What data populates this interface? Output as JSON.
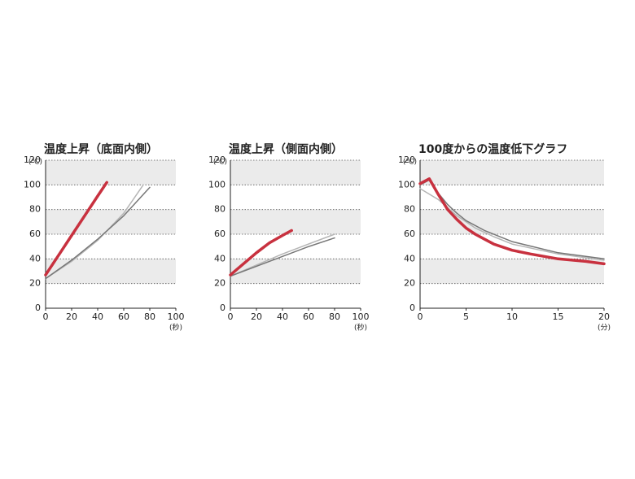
{
  "chart_data": [
    {
      "type": "line",
      "title": "温度上昇（底面内側）",
      "ylabel": "(℃)",
      "xlabel": "(秒)",
      "xlim": [
        0,
        100
      ],
      "xticks": [
        0,
        20,
        40,
        60,
        80,
        100
      ],
      "ylim": [
        0,
        120
      ],
      "yticks": [
        0,
        20,
        40,
        60,
        80,
        100,
        120
      ],
      "grid": true,
      "band_fill": "#ebebeb",
      "series": [
        {
          "color": "#b5b5b5",
          "x": [
            0,
            20,
            40,
            60,
            75
          ],
          "values": [
            24,
            38,
            55,
            77,
            100
          ]
        },
        {
          "color": "#777777",
          "x": [
            0,
            20,
            40,
            60,
            80
          ],
          "values": [
            24,
            39,
            56,
            75,
            98
          ]
        },
        {
          "color": "#c8313f",
          "x": [
            0,
            10,
            20,
            30,
            40,
            47
          ],
          "values": [
            27,
            43,
            59,
            75,
            91,
            102
          ]
        }
      ]
    },
    {
      "type": "line",
      "title": "温度上昇（側面内側）",
      "ylabel": "(℃)",
      "xlabel": "(秒)",
      "xlim": [
        0,
        100
      ],
      "xticks": [
        0,
        20,
        40,
        60,
        80,
        100
      ],
      "ylim": [
        0,
        120
      ],
      "yticks": [
        0,
        20,
        40,
        60,
        80,
        100,
        120
      ],
      "grid": true,
      "band_fill": "#ebebeb",
      "series": [
        {
          "color": "#b5b5b5",
          "x": [
            0,
            20,
            40,
            60,
            80
          ],
          "values": [
            26,
            35,
            44,
            52,
            60
          ]
        },
        {
          "color": "#777777",
          "x": [
            0,
            20,
            40,
            60,
            80
          ],
          "values": [
            26,
            34,
            42,
            50,
            57
          ]
        },
        {
          "color": "#c8313f",
          "x": [
            0,
            10,
            20,
            30,
            40,
            47
          ],
          "values": [
            27,
            36,
            45,
            53,
            59,
            63
          ]
        }
      ]
    },
    {
      "type": "line",
      "title": "100度からの温度低下グラフ",
      "ylabel": "(℃)",
      "xlabel": "(分)",
      "xlim": [
        0,
        20
      ],
      "xticks": [
        0,
        5,
        10,
        15,
        20
      ],
      "ylim": [
        0,
        120
      ],
      "yticks": [
        0,
        20,
        40,
        60,
        80,
        100,
        120
      ],
      "grid": true,
      "band_fill": "#ebebeb",
      "series": [
        {
          "color": "#b5b5b5",
          "x": [
            0,
            2,
            4,
            6,
            8,
            10,
            15,
            20
          ],
          "values": [
            97,
            88,
            75,
            65,
            58,
            52,
            44,
            39
          ]
        },
        {
          "color": "#777777",
          "x": [
            0,
            1,
            2,
            3,
            4,
            5,
            7,
            10,
            15,
            20
          ],
          "values": [
            100,
            104,
            93,
            84,
            77,
            71,
            63,
            54,
            45,
            40
          ]
        },
        {
          "color": "#c8313f",
          "x": [
            0,
            1,
            2,
            3,
            4,
            5,
            6,
            7,
            8,
            10,
            12,
            15,
            18,
            20
          ],
          "values": [
            101,
            105,
            92,
            80,
            72,
            65,
            60,
            56,
            52,
            47,
            44,
            40,
            38,
            36
          ]
        }
      ]
    }
  ]
}
